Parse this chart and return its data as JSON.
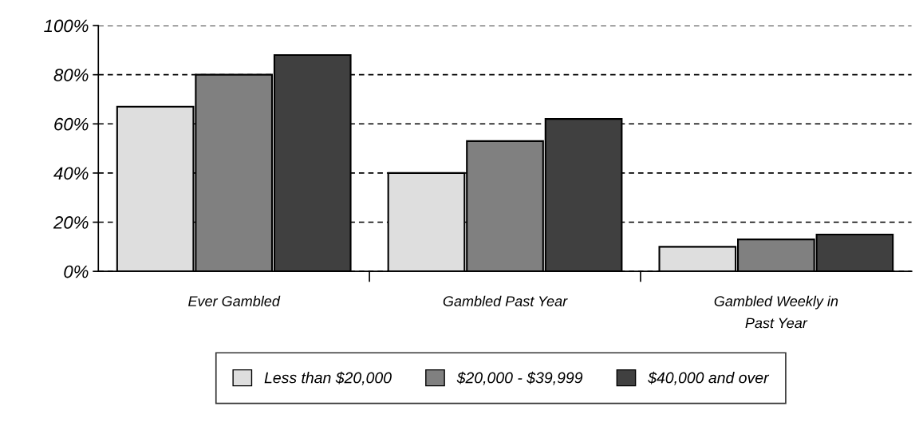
{
  "chart_data": {
    "type": "bar",
    "categories": [
      "Ever Gambled",
      "Gambled Past Year",
      "Gambled Weekly in\nPast Year"
    ],
    "series": [
      {
        "name": "Less than $20,000",
        "color": "#dedede",
        "values": [
          67,
          40,
          10
        ]
      },
      {
        "name": "$20,000 - $39,999",
        "color": "#808080",
        "values": [
          80,
          53,
          13
        ]
      },
      {
        "name": "$40,000 and over",
        "color": "#404040",
        "values": [
          88,
          62,
          15
        ]
      }
    ],
    "ylim": [
      0,
      100
    ],
    "yticks": [
      {
        "value": 0,
        "label": "0%"
      },
      {
        "value": 20,
        "label": "20%"
      },
      {
        "value": 40,
        "label": "40%"
      },
      {
        "value": 60,
        "label": "60%"
      },
      {
        "value": 80,
        "label": "80%"
      },
      {
        "value": 100,
        "label": "100%"
      }
    ],
    "grid": "y",
    "legend": "bottom"
  }
}
